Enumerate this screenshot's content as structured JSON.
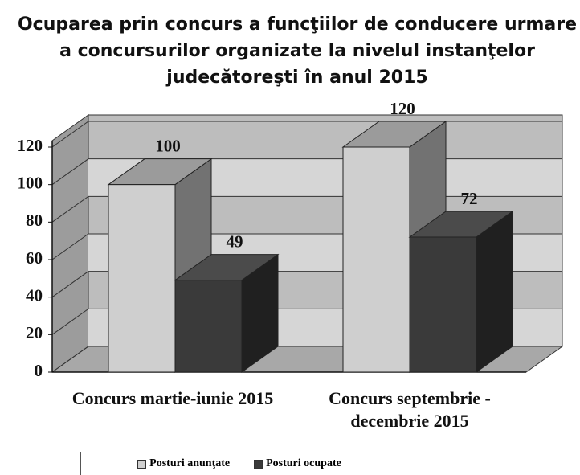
{
  "chart_data": {
    "type": "bar3d",
    "title": "Ocuparea prin concurs a funcţiilor de conducere urmare a concursurilor organizate la nivelul instanţelor judecătoreşti în anul 2015",
    "categories": [
      "Concurs martie-iunie 2015",
      "Concurs septembrie - decembrie 2015"
    ],
    "series": [
      {
        "name": "Posturi anunţate",
        "color": "#cfcfcf",
        "values": [
          100,
          120
        ]
      },
      {
        "name": "Posturi ocupate",
        "color": "#3a3a3a",
        "values": [
          49,
          72
        ]
      }
    ],
    "ylim": [
      0,
      120
    ],
    "yticks": [
      0,
      20,
      40,
      60,
      80,
      100,
      120
    ],
    "grid": true
  }
}
